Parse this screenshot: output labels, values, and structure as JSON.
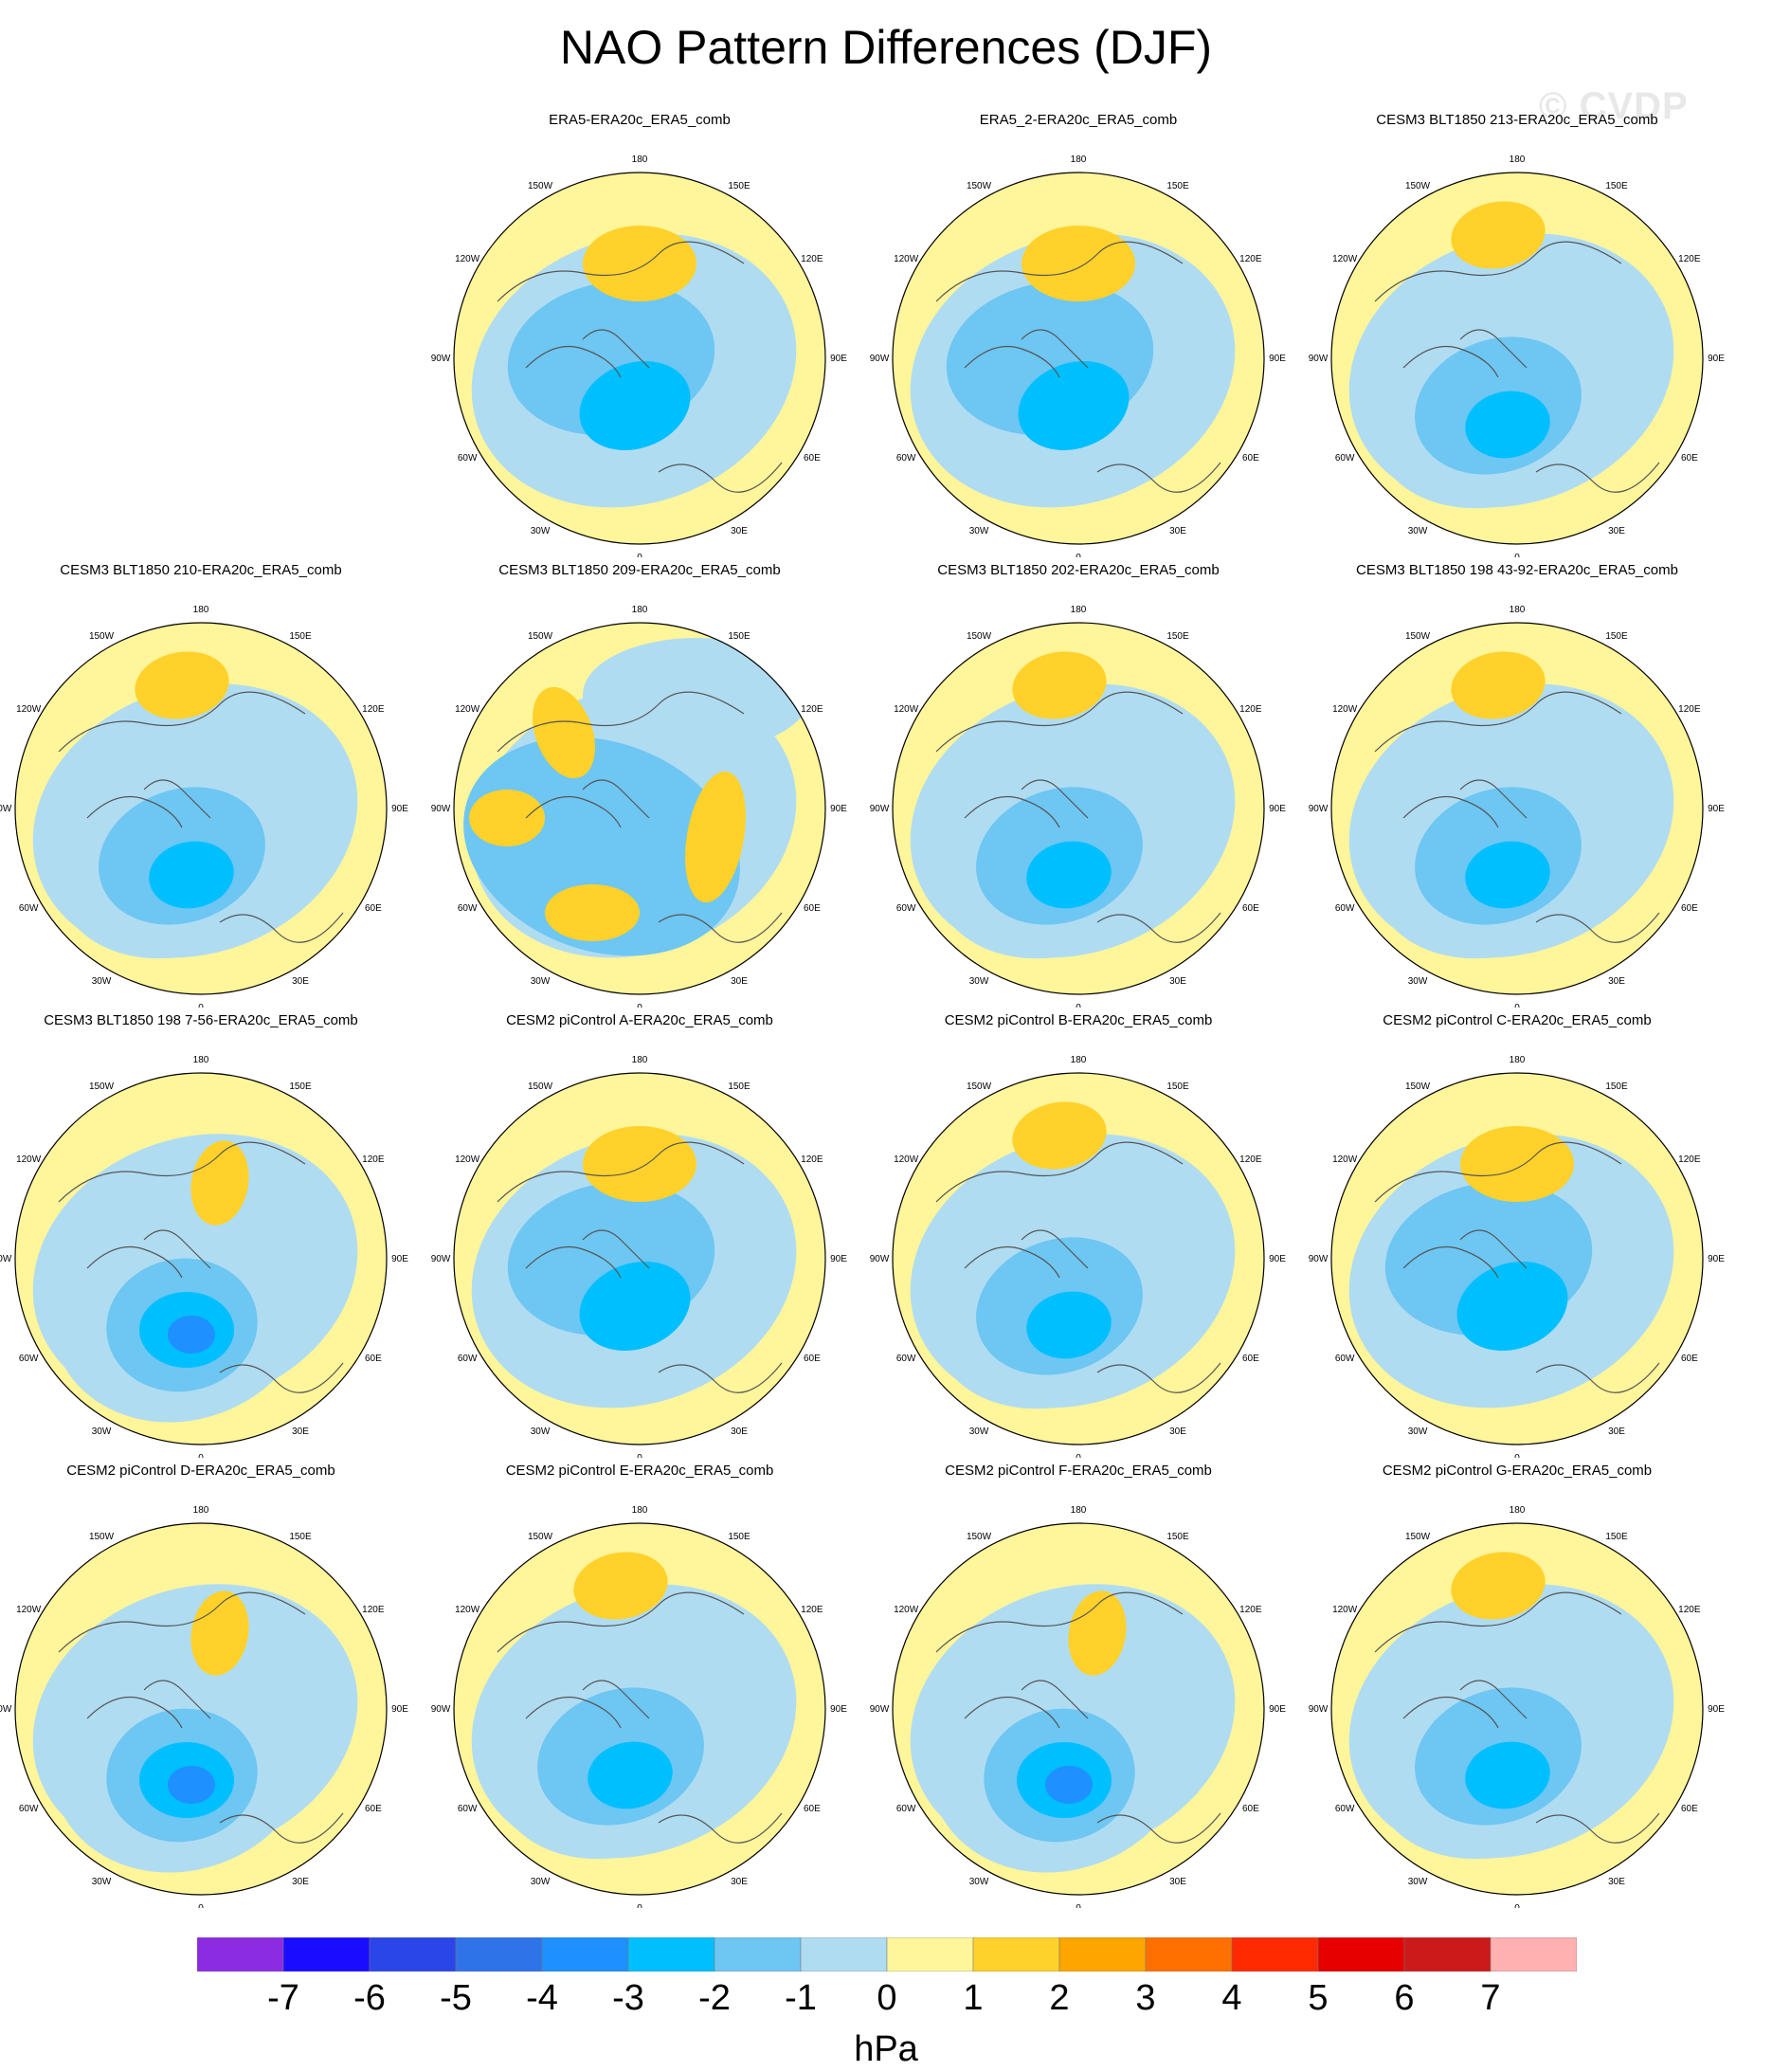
{
  "title": "NAO Pattern Differences (DJF)",
  "watermark": "© CVDP",
  "colorbar": {
    "unit": "hPa",
    "levels": [
      "-7",
      "-6",
      "-5",
      "-4",
      "-3",
      "-2",
      "-1",
      "0",
      "1",
      "2",
      "3",
      "4",
      "5",
      "6",
      "7"
    ],
    "colors": [
      "#8b2be2",
      "#1a0dff",
      "#2a45e8",
      "#2e73e8",
      "#1e90ff",
      "#00bfff",
      "#6ec6f2",
      "#b0dcf2",
      "#fff59a",
      "#ffd12a",
      "#ffa500",
      "#ff7000",
      "#ff2a00",
      "#e60000",
      "#cc1a1a",
      "#ffb0b0"
    ]
  },
  "lon_labels": [
    "180",
    "150E",
    "120E",
    "90E",
    "60E",
    "30E",
    "0",
    "30W",
    "60W",
    "90W",
    "120W",
    "150W"
  ],
  "panels": [
    {
      "title": "ERA5-ERA20c_ERA5_comb",
      "row": 0,
      "col": 1,
      "v": 2
    },
    {
      "title": "ERA5_2-ERA20c_ERA5_comb",
      "row": 0,
      "col": 2,
      "v": 2
    },
    {
      "title": "CESM3 BLT1850 213-ERA20c_ERA5_comb",
      "row": 0,
      "col": 3,
      "v": 3
    },
    {
      "title": "CESM3 BLT1850 210-ERA20c_ERA5_comb",
      "row": 1,
      "col": 0,
      "v": 3
    },
    {
      "title": "CESM3 BLT1850 209-ERA20c_ERA5_comb",
      "row": 1,
      "col": 1,
      "v": 1
    },
    {
      "title": "CESM3 BLT1850 202-ERA20c_ERA5_comb",
      "row": 1,
      "col": 2,
      "v": 3
    },
    {
      "title": "CESM3 BLT1850 198 43-92-ERA20c_ERA5_comb",
      "row": 1,
      "col": 3,
      "v": 3
    },
    {
      "title": "CESM3 BLT1850 198 7-56-ERA20c_ERA5_comb",
      "row": 2,
      "col": 0,
      "v": 4
    },
    {
      "title": "CESM2 piControl A-ERA20c_ERA5_comb",
      "row": 2,
      "col": 1,
      "v": 2
    },
    {
      "title": "CESM2 piControl B-ERA20c_ERA5_comb",
      "row": 2,
      "col": 2,
      "v": 3
    },
    {
      "title": "CESM2 piControl C-ERA20c_ERA5_comb",
      "row": 2,
      "col": 3,
      "v": 2
    },
    {
      "title": "CESM2 piControl D-ERA20c_ERA5_comb",
      "row": 3,
      "col": 0,
      "v": 4
    },
    {
      "title": "CESM2 piControl E-ERA20c_ERA5_comb",
      "row": 3,
      "col": 1,
      "v": 3
    },
    {
      "title": "CESM2 piControl F-ERA20c_ERA5_comb",
      "row": 3,
      "col": 2,
      "v": 4
    },
    {
      "title": "CESM2 piControl G-ERA20c_ERA5_comb",
      "row": 3,
      "col": 3,
      "v": 3
    }
  ]
}
